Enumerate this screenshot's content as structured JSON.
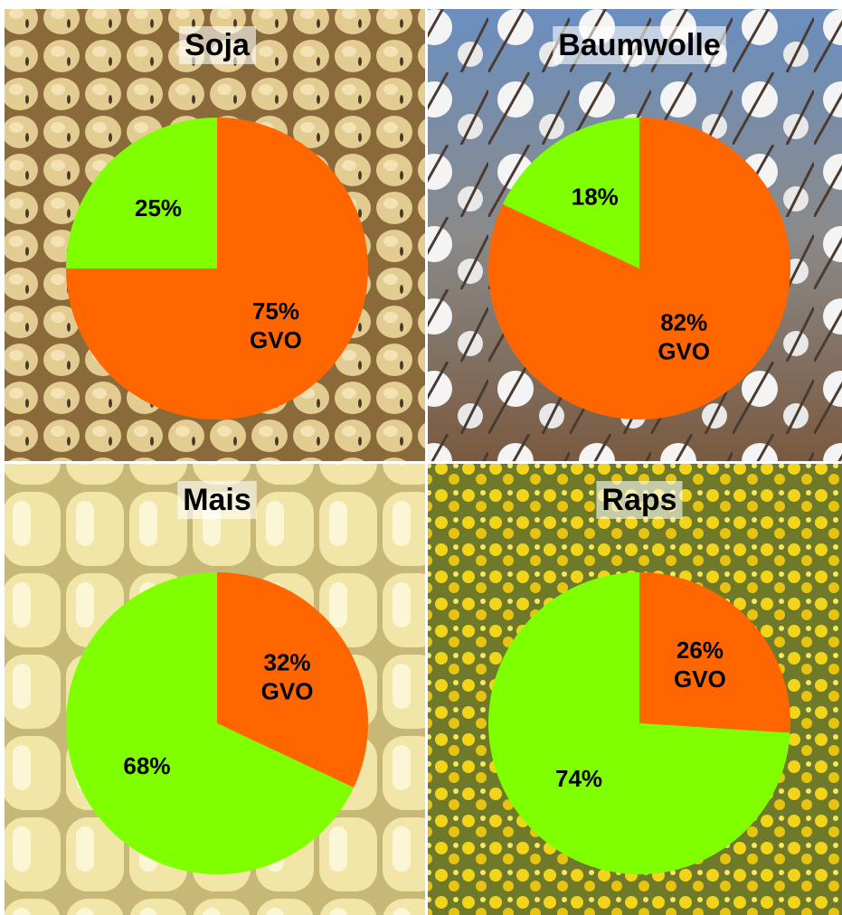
{
  "chart_data": [
    {
      "type": "pie",
      "title": "Soja",
      "categories": [
        "GVO",
        null
      ],
      "values": [
        75,
        25
      ],
      "value_labels": [
        "75%",
        "25%"
      ],
      "colors": [
        "#ff6600",
        "#80ff00"
      ]
    },
    {
      "type": "pie",
      "title": "Baumwolle",
      "categories": [
        "GVO",
        null
      ],
      "values": [
        82,
        18
      ],
      "value_labels": [
        "82%",
        "18%"
      ],
      "colors": [
        "#ff6600",
        "#80ff00"
      ]
    },
    {
      "type": "pie",
      "title": "Mais",
      "categories": [
        "GVO",
        null
      ],
      "values": [
        32,
        68
      ],
      "value_labels": [
        "32%",
        "68%"
      ],
      "colors": [
        "#ff6600",
        "#80ff00"
      ]
    },
    {
      "type": "pie",
      "title": "Raps",
      "categories": [
        "GVO",
        null
      ],
      "values": [
        26,
        74
      ],
      "value_labels": [
        "26%",
        "74%"
      ],
      "colors": [
        "#ff6600",
        "#80ff00"
      ]
    }
  ]
}
